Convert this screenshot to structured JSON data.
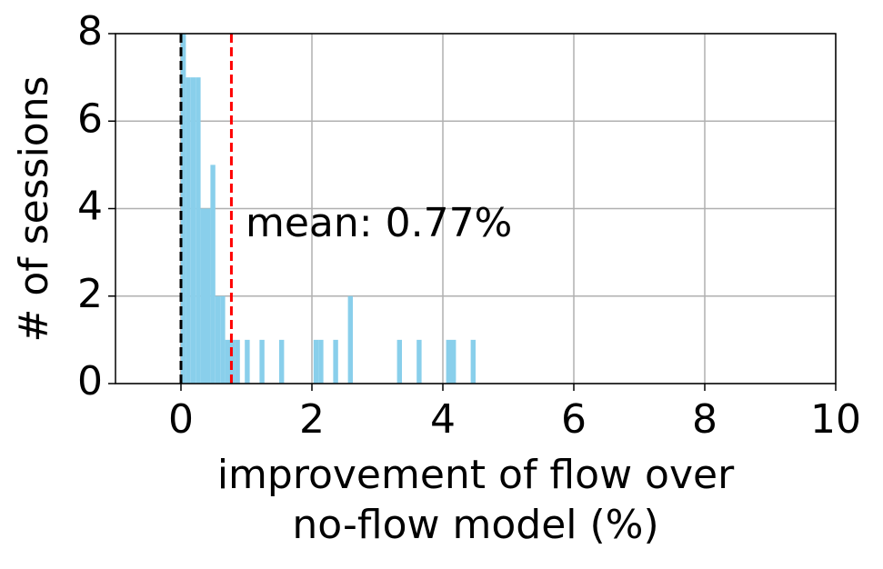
{
  "chart_data": {
    "type": "histogram",
    "xlabel": [
      "improvement of flow over",
      "no-flow model (%)"
    ],
    "ylabel": "# of sessions",
    "annotation": "mean: 0.77%",
    "bins": [
      0,
      0.075,
      0.15,
      0.225,
      0.3,
      0.375,
      0.45,
      0.525,
      0.6,
      0.675,
      0.75,
      0.825,
      0.9,
      0.975,
      1.05,
      1.125,
      1.2,
      1.275,
      1.35,
      1.425,
      1.5,
      1.575,
      1.65,
      1.725,
      1.8,
      1.875,
      1.95,
      2.025,
      2.1,
      2.175,
      2.25,
      2.325,
      2.4,
      2.475,
      2.55,
      2.625,
      2.7,
      2.775,
      2.85,
      2.925,
      3,
      3.075,
      3.15,
      3.225,
      3.3,
      3.375,
      3.45,
      3.525,
      3.6,
      3.675,
      3.75,
      3.825,
      3.9,
      3.975,
      4.05,
      4.125,
      4.2,
      4.275,
      4.35,
      4.425,
      4.5
    ],
    "values": [
      8,
      7,
      7,
      7,
      4,
      4,
      5,
      2,
      2,
      1,
      1,
      1,
      0,
      1,
      0,
      0,
      1,
      0,
      0,
      0,
      1,
      0,
      0,
      0,
      0,
      0,
      0,
      1,
      1,
      0,
      0,
      1,
      0,
      0,
      2,
      0,
      0,
      0,
      0,
      0,
      0,
      0,
      0,
      0,
      1,
      0,
      0,
      0,
      1,
      0,
      0,
      0,
      0,
      0,
      1,
      1,
      0,
      0,
      0,
      1
    ],
    "color": "#89cfeb",
    "reference_lines": [
      {
        "value": 0,
        "color": "#000000"
      },
      {
        "value": 0.77,
        "color": "#ff0000"
      }
    ],
    "xlim": [
      -1,
      10
    ],
    "xticks": [
      0,
      2,
      4,
      6,
      8,
      10
    ],
    "ylim": [
      0,
      8
    ],
    "yticks": [
      0,
      2,
      4,
      6,
      8
    ],
    "grid": true
  }
}
